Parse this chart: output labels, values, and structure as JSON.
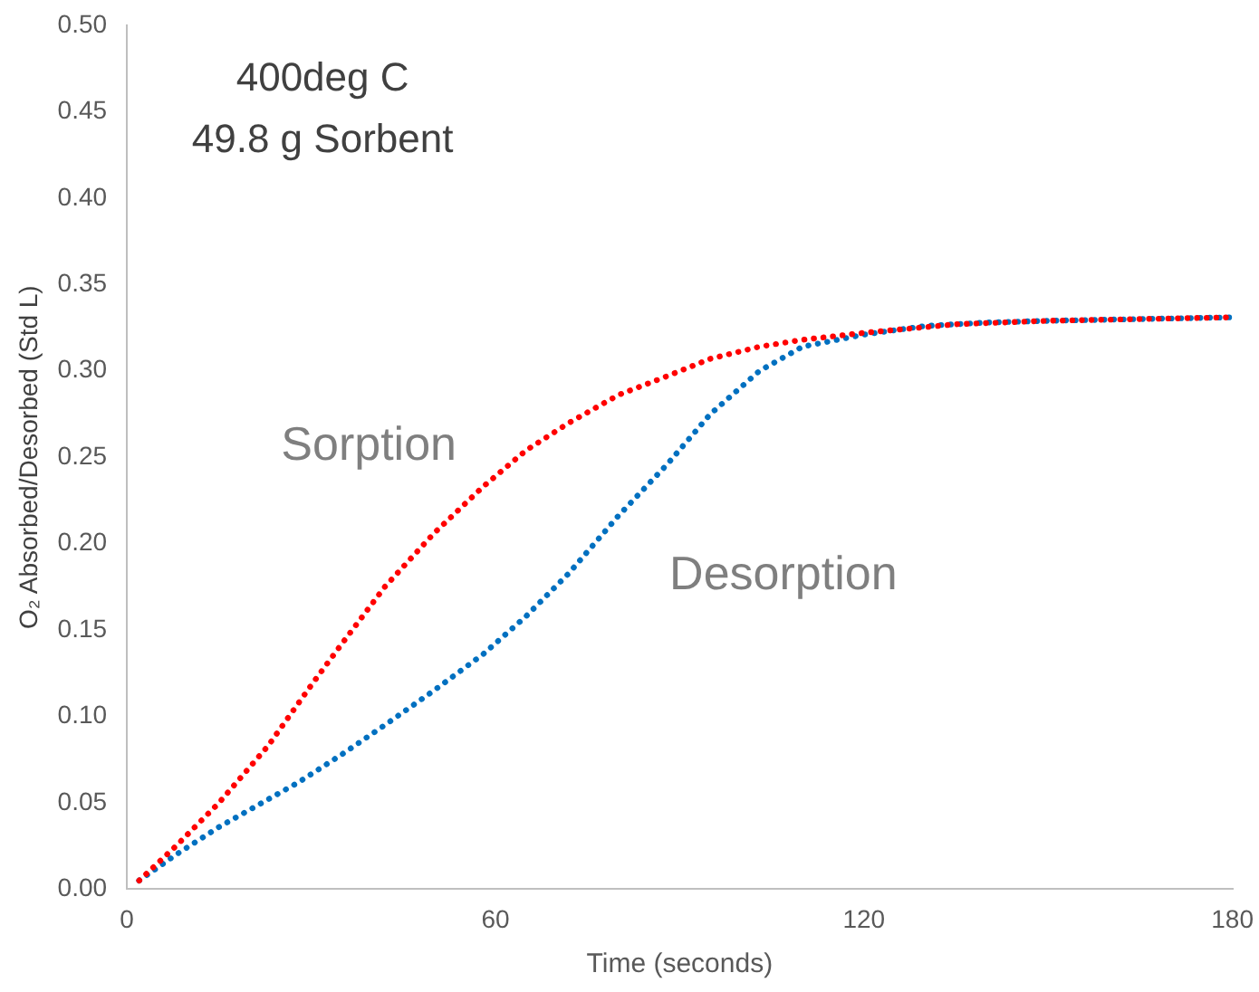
{
  "chart_data": {
    "type": "line",
    "xlabel": "Time (seconds)",
    "ylabel": "O₂ Absorbed/Desorbed (Std L)",
    "xlim": [
      0,
      180
    ],
    "xticks": [
      0,
      60,
      120,
      180
    ],
    "ylim": [
      0,
      0.5
    ],
    "yticks": [
      {
        "value": 0,
        "label": "0.00"
      },
      {
        "value": 0.05,
        "label": "0.05"
      },
      {
        "value": 0.1,
        "label": "0.10"
      },
      {
        "value": 0.15,
        "label": "0.15"
      },
      {
        "value": 0.2,
        "label": "0.20"
      },
      {
        "value": 0.25,
        "label": "0.25"
      },
      {
        "value": 0.3,
        "label": "0.30"
      },
      {
        "value": 0.35,
        "label": "0.35"
      },
      {
        "value": 0.4,
        "label": "0.40"
      },
      {
        "value": 0.45,
        "label": "0.45"
      },
      {
        "value": 0.5,
        "label": "0.50"
      }
    ],
    "grid": false,
    "legend": false,
    "marker": "none",
    "line_style": "dotted",
    "series": [
      {
        "name": "Sorption",
        "color": "#ff0000",
        "x": [
          2,
          8,
          15,
          23,
          30,
          35,
          42,
          50,
          58,
          65,
          72,
          80,
          88,
          95,
          103,
          110,
          120,
          135,
          150,
          165,
          180
        ],
        "values": [
          0.005,
          0.025,
          0.05,
          0.083,
          0.118,
          0.142,
          0.175,
          0.206,
          0.233,
          0.254,
          0.27,
          0.286,
          0.297,
          0.307,
          0.314,
          0.318,
          0.322,
          0.327,
          0.329,
          0.33,
          0.331
        ]
      },
      {
        "name": "Desorption",
        "color": "#0070c0",
        "x": [
          2,
          8,
          15,
          20,
          28,
          35,
          42,
          50,
          58,
          65,
          72,
          80,
          88,
          95,
          103,
          110,
          120,
          130,
          140,
          150,
          165,
          180
        ],
        "values": [
          0.005,
          0.02,
          0.036,
          0.046,
          0.062,
          0.078,
          0.095,
          0.115,
          0.136,
          0.158,
          0.183,
          0.216,
          0.246,
          0.275,
          0.3,
          0.314,
          0.321,
          0.326,
          0.328,
          0.329,
          0.33,
          0.331
        ]
      }
    ],
    "annotations": [
      "400deg C",
      "49.8 g Sorbent"
    ]
  }
}
